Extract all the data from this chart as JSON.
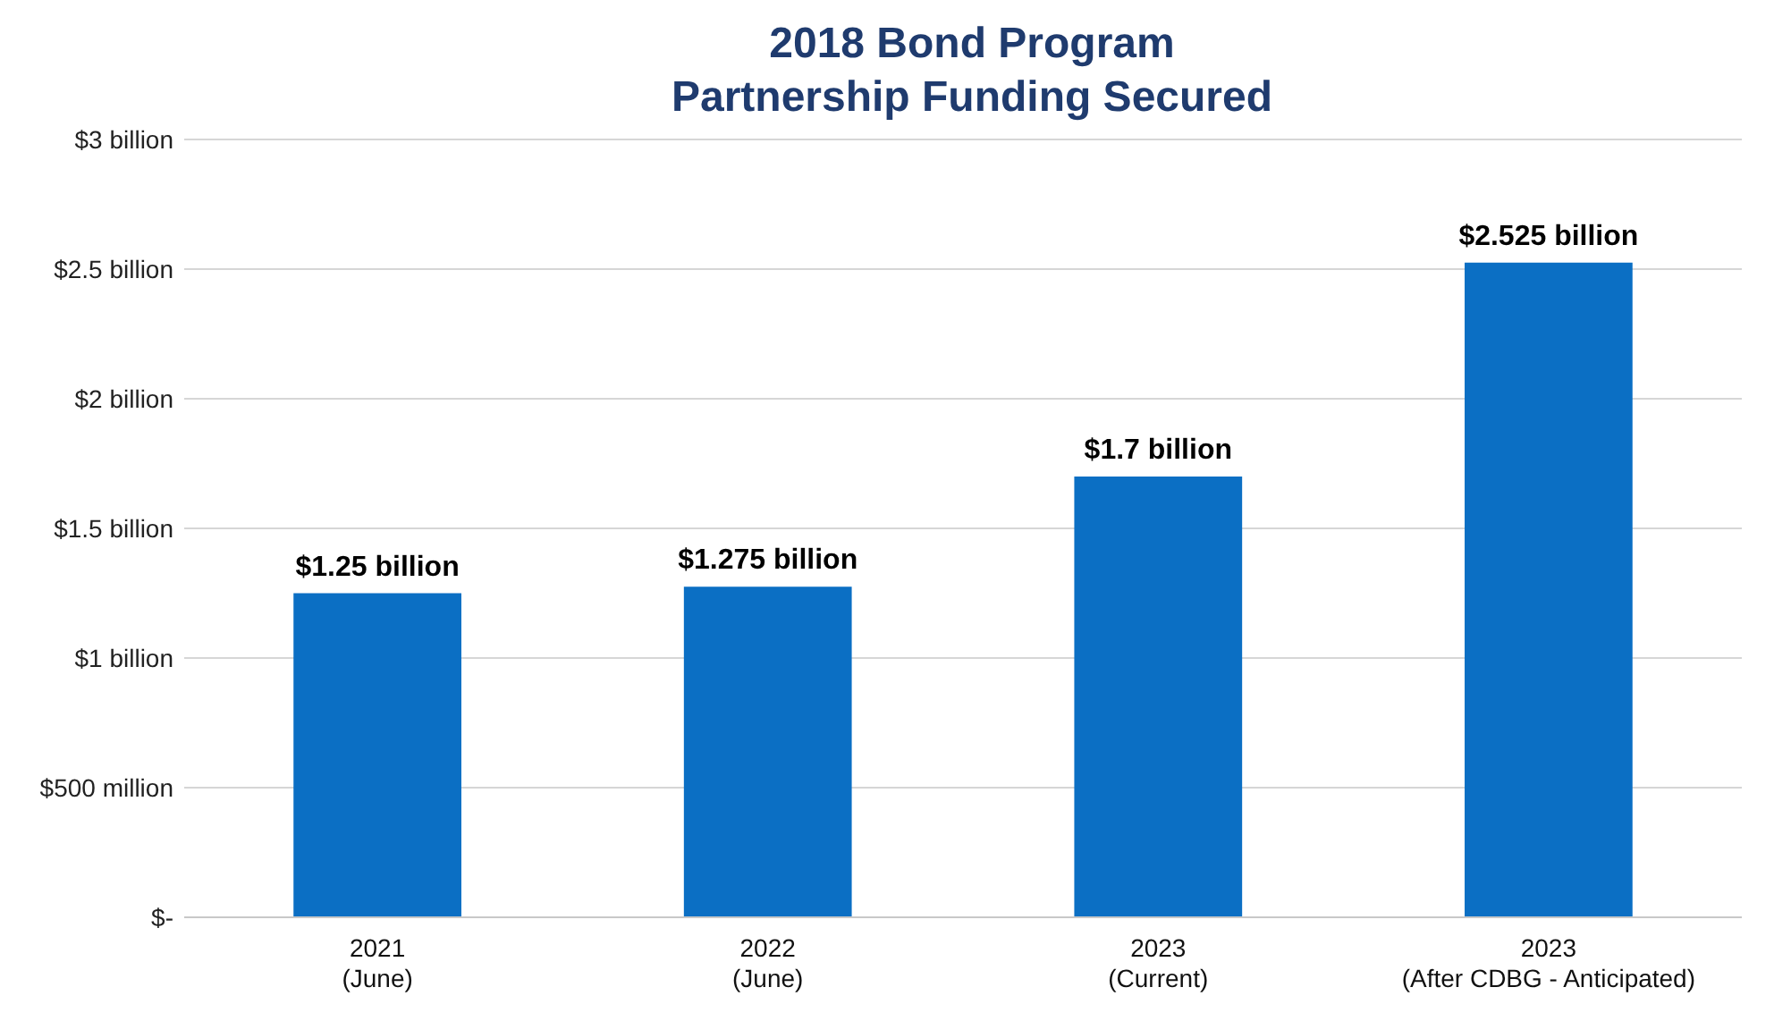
{
  "chart_data": {
    "type": "bar",
    "title": "2018 Bond Program\nPartnership Funding Secured",
    "categories": [
      "2021\n(June)",
      "2022\n(June)",
      "2023\n(Current)",
      "2023\n(After CDBG - Anticipated)"
    ],
    "values": [
      1250000000,
      1275000000,
      1700000000,
      2525000000
    ],
    "value_labels": [
      "$1.25 billion",
      "$1.275 billion",
      "$1.7 billion",
      "$2.525 billion"
    ],
    "color": "#0b6fc4",
    "ylim": [
      0,
      3000000000
    ],
    "yticks": [
      {
        "value": 0,
        "label": "$-"
      },
      {
        "value": 500000000,
        "label": "$500 million"
      },
      {
        "value": 1000000000,
        "label": "$1 billion"
      },
      {
        "value": 1500000000,
        "label": "$1.5 billion"
      },
      {
        "value": 2000000000,
        "label": "$2 billion"
      },
      {
        "value": 2500000000,
        "label": "$2.5 billion"
      },
      {
        "value": 3000000000,
        "label": "$3 billion"
      }
    ],
    "grid": "y"
  }
}
